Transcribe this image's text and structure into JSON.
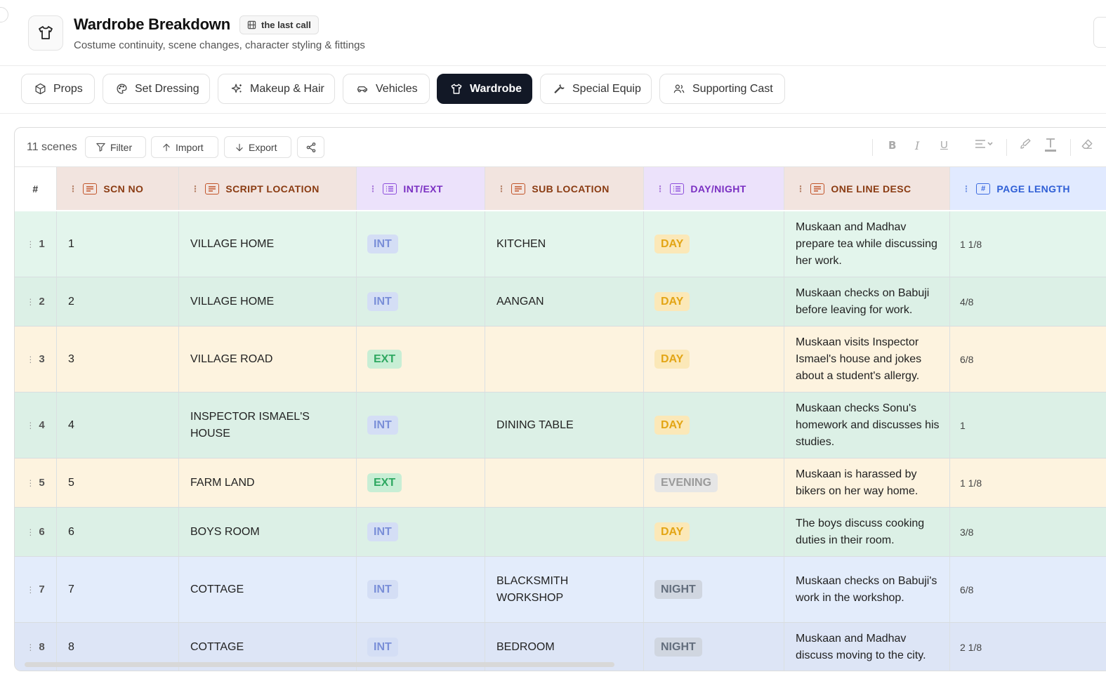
{
  "header": {
    "title": "Wardrobe Breakdown",
    "project": "the last call",
    "subtitle": "Costume continuity, scene changes, character styling & fittings"
  },
  "tabs": [
    {
      "label": "Props",
      "icon": "box-icon"
    },
    {
      "label": "Set Dressing",
      "icon": "palette-icon"
    },
    {
      "label": "Makeup & Hair",
      "icon": "sparkles-icon"
    },
    {
      "label": "Vehicles",
      "icon": "car-icon"
    },
    {
      "label": "Wardrobe",
      "icon": "shirt-icon",
      "active": true
    },
    {
      "label": "Special Equip",
      "icon": "wrench-icon"
    },
    {
      "label": "Supporting Cast",
      "icon": "users-icon"
    }
  ],
  "toolbar": {
    "scene_count": "11 scenes",
    "filter": "Filter",
    "import": "Import",
    "export": "Export"
  },
  "columns": {
    "num": "#",
    "scn_no": "SCN NO",
    "script_location": "SCRIPT LOCATION",
    "int_ext": "INT/EXT",
    "sub_location": "SUB LOCATION",
    "day_night": "DAY/NIGHT",
    "one_line_desc": "ONE LINE DESC",
    "page_length": "PAGE LENGTH",
    "page_length_type_icon": "#"
  },
  "rows": [
    {
      "num": "1",
      "scn": "1",
      "location": "VILLAGE HOME",
      "intext": "INT",
      "sub": "KITCHEN",
      "daynight": "DAY",
      "desc": "Muskaan and Madhav prepare tea while discussing her work.",
      "length": "1 1/8"
    },
    {
      "num": "2",
      "scn": "2",
      "location": "VILLAGE HOME",
      "intext": "INT",
      "sub": "AANGAN",
      "daynight": "DAY",
      "desc": "Muskaan checks on Babuji before leaving for work.",
      "length": "4/8"
    },
    {
      "num": "3",
      "scn": "3",
      "location": "VILLAGE ROAD",
      "intext": "EXT",
      "sub": "",
      "daynight": "DAY",
      "desc": "Muskaan visits Inspector Ismael's house and jokes about a student's allergy.",
      "length": "6/8"
    },
    {
      "num": "4",
      "scn": "4",
      "location": "INSPECTOR ISMAEL'S HOUSE",
      "intext": "INT",
      "sub": "DINING TABLE",
      "daynight": "DAY",
      "desc": "Muskaan checks Sonu's homework and discusses his studies.",
      "length": "1"
    },
    {
      "num": "5",
      "scn": "5",
      "location": "FARM LAND",
      "intext": "EXT",
      "sub": "",
      "daynight": "EVENING",
      "desc": "Muskaan is harassed by bikers on her way home.",
      "length": "1 1/8"
    },
    {
      "num": "6",
      "scn": "6",
      "location": "BOYS ROOM",
      "intext": "INT",
      "sub": "",
      "daynight": "DAY",
      "desc": "The boys discuss cooking duties in their room.",
      "length": "3/8"
    },
    {
      "num": "7",
      "scn": "7",
      "location": "COTTAGE",
      "intext": "INT",
      "sub": "BLACKSMITH WORKSHOP",
      "daynight": "NIGHT",
      "desc": "Muskaan checks on Babuji's work in the workshop.",
      "length": "6/8"
    },
    {
      "num": "8",
      "scn": "8",
      "location": "COTTAGE",
      "intext": "INT",
      "sub": "BEDROOM",
      "daynight": "NIGHT",
      "desc": "Muskaan and Madhav discuss moving to the city.",
      "length": "2 1/8"
    }
  ]
}
